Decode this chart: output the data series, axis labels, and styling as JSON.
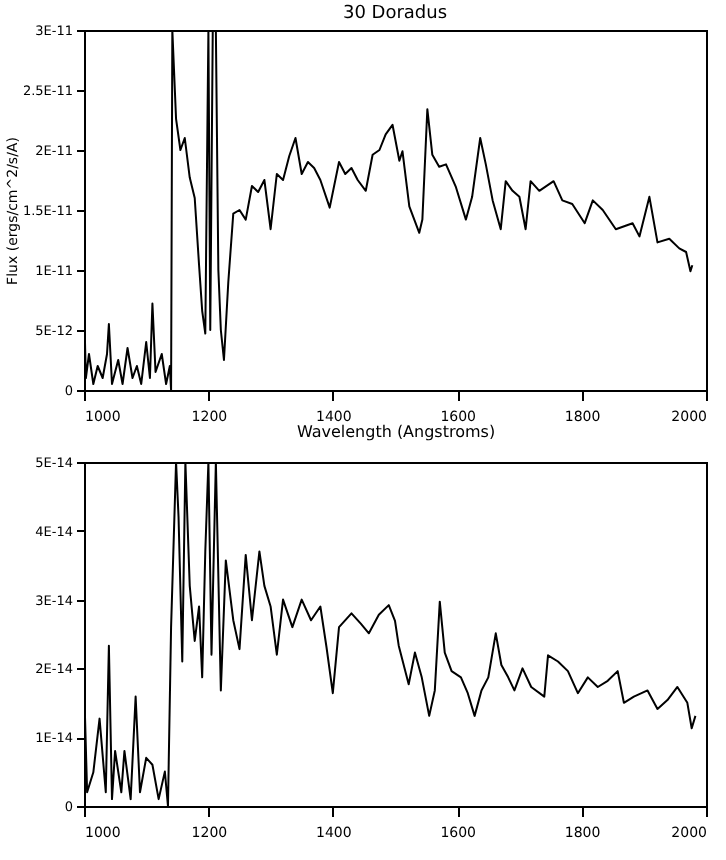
{
  "chart_data": [
    {
      "type": "line",
      "title": "30 Doradus",
      "xlabel": "Wavelength (Angstroms)",
      "ylabel": "Flux (ergs/cm^2/s/A)",
      "color": "#000000",
      "xlim": [
        1000,
        2000
      ],
      "xticks": [
        1000,
        1200,
        1400,
        1600,
        1800,
        2000
      ],
      "ylim": [
        0,
        3e-11
      ],
      "yticks": [
        0,
        {
          "value": 5e-12,
          "label": "5E-12"
        },
        {
          "value": 1e-11,
          "label": "1E-11"
        },
        {
          "value": 1.5e-11,
          "label": "1.5E-11"
        },
        {
          "value": 2e-11,
          "label": "2E-11"
        },
        {
          "value": 2.5e-11,
          "label": "2.5E-11"
        },
        {
          "value": 3e-11,
          "label": "3E-11"
        }
      ],
      "x": [
        1000,
        1003,
        1008,
        1015,
        1022,
        1030,
        1037,
        1040,
        1045,
        1055,
        1062,
        1070,
        1078,
        1085,
        1092,
        1100,
        1106,
        1110,
        1115,
        1125,
        1132,
        1138,
        1140,
        1142,
        1148,
        1155,
        1162,
        1170,
        1178,
        1185,
        1190,
        1195,
        1200,
        1203,
        1207,
        1212,
        1216,
        1220,
        1225,
        1232,
        1240,
        1250,
        1260,
        1270,
        1280,
        1290,
        1300,
        1310,
        1320,
        1330,
        1340,
        1350,
        1360,
        1370,
        1380,
        1395,
        1410,
        1420,
        1430,
        1440,
        1453,
        1464,
        1475,
        1485,
        1496,
        1507,
        1512,
        1523,
        1539,
        1544,
        1552,
        1560,
        1571,
        1582,
        1598,
        1614,
        1624,
        1637,
        1646,
        1657,
        1670,
        1678,
        1689,
        1700,
        1710,
        1718,
        1732,
        1755,
        1769,
        1785,
        1805,
        1818,
        1834,
        1855,
        1882,
        1893,
        1909,
        1922,
        1941,
        1957,
        1968,
        1975,
        1978
      ],
      "values": [
        7.4e-12,
        1e-12,
        3e-12,
        5e-13,
        2e-12,
        1e-12,
        3e-12,
        5.5e-12,
        5e-13,
        2.5e-12,
        5e-13,
        3.5e-12,
        1e-12,
        2e-12,
        5e-13,
        4e-12,
        1e-12,
        7.2e-12,
        1.5e-12,
        3e-12,
        5e-13,
        2e-12,
        0,
        3e-11,
        2.26e-11,
        2e-11,
        2.1e-11,
        1.77e-11,
        1.6e-11,
        1.04e-11,
        6.6e-12,
        4.7e-12,
        3e-11,
        5e-12,
        3e-11,
        3e-11,
        1e-11,
        5e-12,
        2.5e-12,
        9e-12,
        1.47e-11,
        1.5e-11,
        1.42e-11,
        1.7e-11,
        1.65e-11,
        1.75e-11,
        1.34e-11,
        1.8e-11,
        1.75e-11,
        1.95e-11,
        2.1e-11,
        1.8e-11,
        1.9e-11,
        1.85e-11,
        1.75e-11,
        1.52e-11,
        1.9e-11,
        1.8e-11,
        1.85e-11,
        1.75e-11,
        1.66e-11,
        1.96e-11,
        2e-11,
        2.13e-11,
        2.21e-11,
        1.91e-11,
        1.99e-11,
        1.53e-11,
        1.31e-11,
        1.42e-11,
        2.34e-11,
        1.96e-11,
        1.86e-11,
        1.88e-11,
        1.69e-11,
        1.42e-11,
        1.61e-11,
        2.1e-11,
        1.88e-11,
        1.58e-11,
        1.34e-11,
        1.74e-11,
        1.66e-11,
        1.61e-11,
        1.34e-11,
        1.74e-11,
        1.66e-11,
        1.74e-11,
        1.58e-11,
        1.55e-11,
        1.39e-11,
        1.58e-11,
        1.5e-11,
        1.34e-11,
        1.39e-11,
        1.28e-11,
        1.61e-11,
        1.23e-11,
        1.26e-11,
        1.18e-11,
        1.15e-11,
        9.9e-12,
        1.04e-11
      ]
    },
    {
      "type": "line",
      "color": "#000000",
      "xlim": [
        1000,
        2000
      ],
      "xticks": [
        1000,
        1200,
        1400,
        1600,
        1800,
        2000
      ],
      "ylim": [
        0,
        5e-14
      ],
      "yticks": [
        0,
        {
          "value": 1e-14,
          "label": "1E-14"
        },
        {
          "value": 2e-14,
          "label": "2E-14"
        },
        {
          "value": 3e-14,
          "label": "3E-14"
        },
        {
          "value": 4e-14,
          "label": "4E-14"
        },
        {
          "value": 5e-14,
          "label": "5E-14"
        }
      ],
      "x": [
        1000,
        1005,
        1015,
        1025,
        1035,
        1040,
        1045,
        1050,
        1060,
        1065,
        1075,
        1083,
        1090,
        1100,
        1110,
        1120,
        1130,
        1135,
        1140,
        1148,
        1152,
        1158,
        1163,
        1170,
        1178,
        1185,
        1190,
        1195,
        1200,
        1205,
        1212,
        1220,
        1228,
        1240,
        1250,
        1260,
        1270,
        1282,
        1290,
        1300,
        1310,
        1320,
        1335,
        1350,
        1365,
        1380,
        1390,
        1400,
        1410,
        1430,
        1445,
        1458,
        1474,
        1490,
        1500,
        1506,
        1522,
        1532,
        1543,
        1555,
        1564,
        1572,
        1580,
        1591,
        1606,
        1617,
        1628,
        1639,
        1650,
        1662,
        1671,
        1682,
        1692,
        1705,
        1719,
        1740,
        1746,
        1762,
        1778,
        1794,
        1810,
        1826,
        1842,
        1858,
        1868,
        1884,
        1906,
        1922,
        1938,
        1954,
        1970,
        1977,
        1983
      ],
      "values": [
        1.82e-14,
        2e-15,
        4.9e-15,
        1.27e-14,
        2e-15,
        2.33e-14,
        1e-15,
        8e-15,
        2e-15,
        8e-15,
        1e-15,
        1.59e-14,
        2e-15,
        7e-15,
        6e-15,
        1e-15,
        5e-15,
        0,
        2.6e-14,
        5e-14,
        4.2e-14,
        2.1e-14,
        5e-14,
        3.2e-14,
        2.4e-14,
        2.9e-14,
        1.87e-14,
        3.7e-14,
        5e-14,
        2.2e-14,
        5e-14,
        1.68e-14,
        3.57e-14,
        2.7e-14,
        2.28e-14,
        3.65e-14,
        2.7e-14,
        3.7e-14,
        3.2e-14,
        2.9e-14,
        2.2e-14,
        3e-14,
        2.6e-14,
        3e-14,
        2.7e-14,
        2.9e-14,
        2.3e-14,
        1.64e-14,
        2.6e-14,
        2.8e-14,
        2.65e-14,
        2.51e-14,
        2.78e-14,
        2.92e-14,
        2.69e-14,
        2.33e-14,
        1.77e-14,
        2.23e-14,
        1.87e-14,
        1.31e-14,
        1.68e-14,
        2.97e-14,
        2.23e-14,
        1.96e-14,
        1.87e-14,
        1.64e-14,
        1.31e-14,
        1.68e-14,
        1.87e-14,
        2.51e-14,
        2.05e-14,
        1.87e-14,
        1.68e-14,
        2e-14,
        1.73e-14,
        1.59e-14,
        2.19e-14,
        2.1e-14,
        1.96e-14,
        1.64e-14,
        1.87e-14,
        1.73e-14,
        1.82e-14,
        1.96e-14,
        1.5e-14,
        1.59e-14,
        1.68e-14,
        1.41e-14,
        1.54e-14,
        1.73e-14,
        1.5e-14,
        1.13e-14,
        1.31e-14
      ]
    }
  ]
}
